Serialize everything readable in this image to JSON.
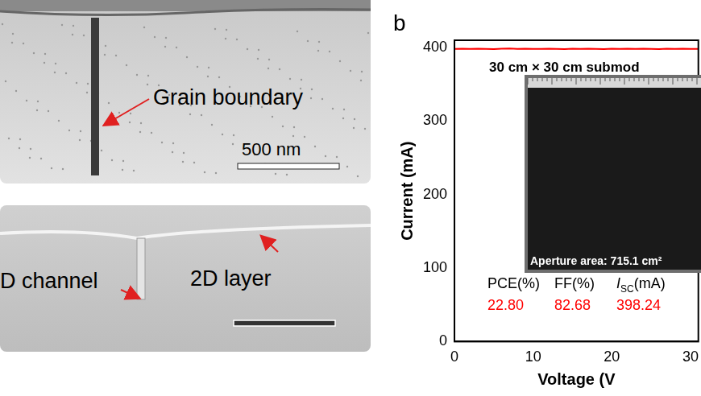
{
  "chart_data": {
    "type": "line",
    "panel_label": "b",
    "title": "30 cm × 30 cm submod",
    "x_label": "Voltage (V",
    "y_label": "Current (mA)",
    "x": [
      0,
      1,
      2,
      3,
      4,
      5,
      6,
      7,
      8,
      9,
      10,
      11,
      12,
      13,
      14,
      15,
      16,
      17,
      18,
      19,
      20,
      21,
      22,
      23,
      24,
      25,
      26,
      27,
      28,
      29,
      30,
      31
    ],
    "values": [
      398.2,
      398.5,
      398.1,
      398.6,
      398.3,
      398.0,
      398.4,
      398.7,
      398.2,
      398.5,
      398.1,
      398.3,
      398.6,
      398.2,
      397.9,
      398.4,
      398.1,
      398.5,
      398.3,
      398.0,
      398.6,
      398.2,
      398.4,
      398.1,
      398.5,
      398.3,
      398.0,
      398.4,
      398.2,
      398.6,
      398.1,
      398.3
    ],
    "color": "#ff0000",
    "xlim": [
      0,
      31
    ],
    "xticks": [
      0,
      10,
      20,
      30
    ],
    "ylim": [
      0,
      410
    ],
    "yticks": [
      0,
      100,
      200,
      300,
      400
    ],
    "grid": false,
    "annotations": {
      "inset_caption": "Aperture area: 715.1 cm²",
      "table": {
        "headers": [
          {
            "text": "PCE(%)"
          },
          {
            "text": "FF(%)"
          },
          {
            "text": "I",
            "sub": "SC",
            "rest": "(mA)"
          }
        ],
        "values": [
          "22.80",
          "82.68",
          "398.24"
        ]
      }
    }
  },
  "sem_images": {
    "top": {
      "label": "Grain boundary",
      "scale_bar": "500 nm"
    },
    "bottom": {
      "labels": [
        "D channel",
        "2D layer"
      ]
    }
  }
}
